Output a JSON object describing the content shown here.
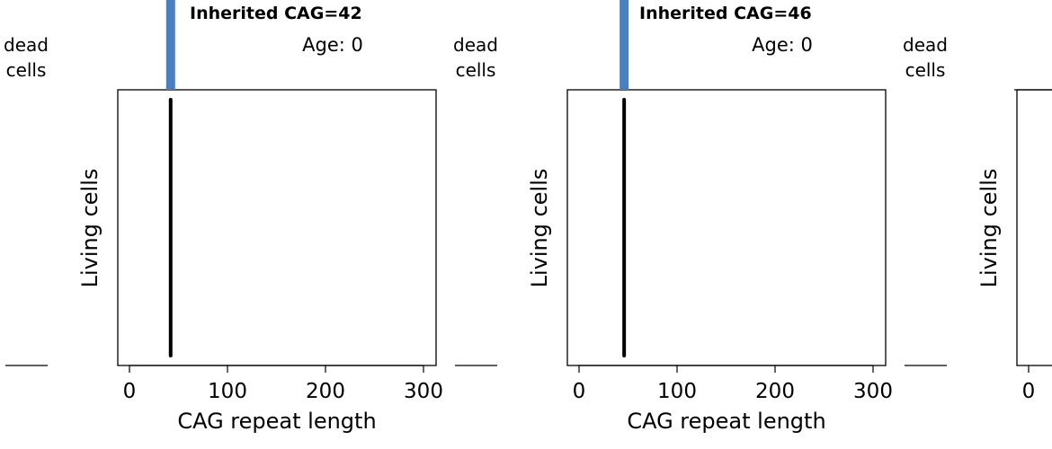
{
  "panels": [
    {
      "inherited_label": "Inherited CAG=42",
      "age_label": "Age: 0",
      "dead_label_line1": "dead",
      "dead_label_line2": "cells",
      "ylabel": "Living cells",
      "xlabel": "CAG repeat length",
      "ticks": [
        "0",
        "100",
        "200",
        "300"
      ]
    },
    {
      "inherited_label": "Inherited CAG=46",
      "age_label": "Age: 0",
      "dead_label_line1": "dead",
      "dead_label_line2": "cells",
      "ylabel": "Living cells",
      "xlabel": "CAG repeat length",
      "ticks": [
        "0",
        "100",
        "200",
        "300"
      ]
    },
    {
      "dead_label_line1": "dead",
      "dead_label_line2": "cells",
      "ylabel": "Living cells",
      "ticks": [
        "0"
      ]
    }
  ],
  "colors": {
    "dead_bar": "#4a80bf",
    "living_line": "#000000",
    "axis": "#000000"
  },
  "chart_data": [
    {
      "type": "bar",
      "inherited_cag": 42,
      "age": 0,
      "xlim": [
        0,
        310
      ],
      "x_ticks": [
        0,
        100,
        200,
        300
      ],
      "living_cells_cag": 42,
      "xlabel": "CAG repeat length",
      "ylabel": "Living cells"
    },
    {
      "type": "bar",
      "inherited_cag": 46,
      "age": 0,
      "xlim": [
        0,
        310
      ],
      "x_ticks": [
        0,
        100,
        200,
        300
      ],
      "living_cells_cag": 46,
      "xlabel": "CAG repeat length",
      "ylabel": "Living cells"
    }
  ]
}
